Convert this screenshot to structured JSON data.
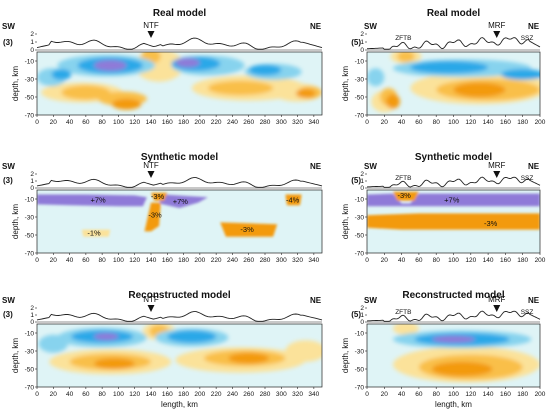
{
  "colors": {
    "background": "#dff4f6",
    "neg_light": "#87d3ee",
    "neg_mid": "#2ca8e8",
    "neg_deep": "#8f7ad8",
    "pos_light": "#fbe29a",
    "pos_mid": "#f9bf48",
    "pos_deep": "#f39a10",
    "synthetic_neg": "#8f7ad8",
    "synthetic_pos": "#f39a10"
  },
  "labels": {
    "sw": "SW",
    "ne": "NE",
    "depth_axis": "depth, km",
    "length_axis": "length, km"
  },
  "panels": [
    {
      "id": "left-real",
      "title": "Real model",
      "profile": "(3)",
      "markers": [
        {
          "label": "NTF",
          "x": 140
        }
      ],
      "xmax": 350,
      "xticks": [
        0,
        20,
        40,
        60,
        80,
        100,
        120,
        140,
        160,
        180,
        200,
        220,
        240,
        260,
        280,
        300,
        320,
        340
      ],
      "yticks": [
        -10,
        -30,
        -50,
        -70
      ],
      "elev_ticks": [
        "2",
        "1",
        "0"
      ],
      "anomalies": []
    },
    {
      "id": "right-real",
      "title": "Real model",
      "profile": "(5)",
      "markers": [
        {
          "label": "MRF",
          "x": 150
        }
      ],
      "zones": [
        {
          "label": "ZFTB",
          "x": 42
        },
        {
          "label": "SSZ",
          "x": 185
        }
      ],
      "xmax": 200,
      "xticks": [
        0,
        20,
        40,
        60,
        80,
        100,
        120,
        140,
        160,
        180,
        200
      ],
      "yticks": [
        -10,
        -30,
        -50,
        -70
      ],
      "elev_ticks": [
        "2",
        "1",
        "0"
      ],
      "anomalies": []
    },
    {
      "id": "left-synthetic",
      "title": "Synthetic model",
      "profile": "(3)",
      "markers": [
        {
          "label": "NTF",
          "x": 140
        }
      ],
      "xmax": 350,
      "xticks": [
        0,
        20,
        40,
        60,
        80,
        100,
        120,
        140,
        160,
        180,
        200,
        220,
        240,
        260,
        280,
        300,
        320,
        340
      ],
      "yticks": [
        -10,
        -30,
        -50,
        -70
      ],
      "elev_ticks": [
        "2",
        "1",
        "0"
      ],
      "anomalies": [
        {
          "text": "+7%",
          "x": 75,
          "depth": -11
        },
        {
          "text": "-3%",
          "x": 148,
          "depth": -7
        },
        {
          "text": "+7%",
          "x": 176,
          "depth": -13
        },
        {
          "text": "-3%",
          "x": 145,
          "depth": -28
        },
        {
          "text": "-4%",
          "x": 314,
          "depth": -11
        },
        {
          "text": "-1%",
          "x": 70,
          "depth": -48
        },
        {
          "text": "-3%",
          "x": 258,
          "depth": -44
        }
      ]
    },
    {
      "id": "right-synthetic",
      "title": "Synthetic model",
      "profile": "(5)",
      "markers": [
        {
          "label": "MRF",
          "x": 150
        }
      ],
      "zones": [
        {
          "label": "ZFTB",
          "x": 42
        },
        {
          "label": "SSZ",
          "x": 185
        }
      ],
      "xmax": 200,
      "xticks": [
        0,
        20,
        40,
        60,
        80,
        100,
        120,
        140,
        160,
        180,
        200
      ],
      "yticks": [
        -10,
        -30,
        -50,
        -70
      ],
      "elev_ticks": [
        "2",
        "1",
        "0"
      ],
      "anomalies": [
        {
          "text": "-3%",
          "x": 43,
          "depth": -6
        },
        {
          "text": "+7%",
          "x": 98,
          "depth": -11
        },
        {
          "text": "-3%",
          "x": 143,
          "depth": -37
        }
      ]
    },
    {
      "id": "left-reconstructed",
      "title": "Reconstructed model",
      "profile": "(3)",
      "markers": [
        {
          "label": "NTF",
          "x": 140
        }
      ],
      "xmax": 350,
      "xticks": [
        0,
        20,
        40,
        60,
        80,
        100,
        120,
        140,
        160,
        180,
        200,
        220,
        240,
        260,
        280,
        300,
        320,
        340
      ],
      "yticks": [
        -10,
        -30,
        -50,
        -70
      ],
      "elev_ticks": [
        "2",
        "1",
        "0"
      ],
      "anomalies": []
    },
    {
      "id": "right-reconstructed",
      "title": "Reconstructed model",
      "profile": "(5)",
      "markers": [
        {
          "label": "MRF",
          "x": 150
        }
      ],
      "zones": [
        {
          "label": "ZFTB",
          "x": 42
        },
        {
          "label": "SSZ",
          "x": 185
        }
      ],
      "xmax": 200,
      "xticks": [
        0,
        20,
        40,
        60,
        80,
        100,
        120,
        140,
        160,
        180,
        200
      ],
      "yticks": [
        -10,
        -30,
        -50,
        -70
      ],
      "elev_ticks": [
        "2",
        "1",
        "0"
      ],
      "anomalies": []
    }
  ]
}
